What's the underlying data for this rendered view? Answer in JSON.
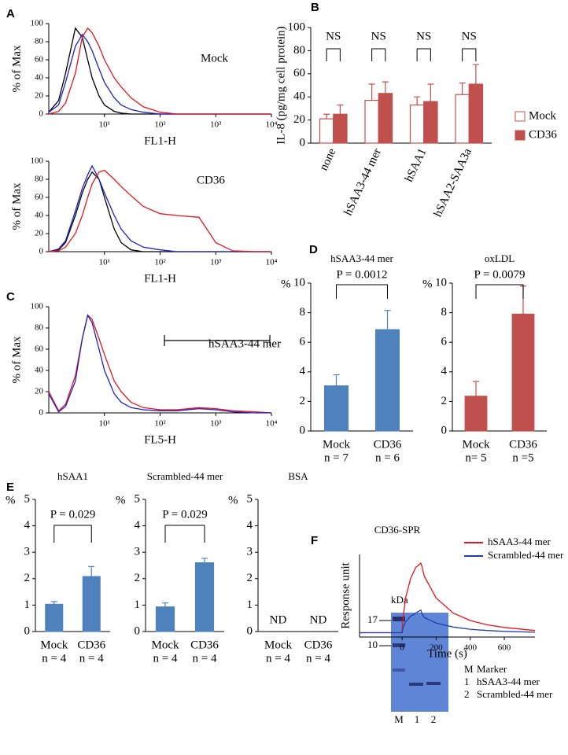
{
  "chart_data": [
    {
      "type": "line",
      "panel": "A",
      "label": "Mock",
      "xlabel": "FL1-H",
      "ylabel": "% of Max",
      "xscale": "log",
      "xlim": [
        1,
        10000
      ],
      "xticks": [
        {
          "value": 10,
          "label": "10¹"
        },
        {
          "value": 100,
          "label": "10²"
        },
        {
          "value": 1000,
          "label": "10³"
        },
        {
          "value": 10000,
          "label": "10⁴"
        }
      ],
      "ylim": [
        0,
        100
      ],
      "yticks": [
        0,
        20,
        40,
        60,
        80,
        100
      ],
      "x": [
        1,
        1.5,
        2,
        3,
        4,
        5,
        6,
        8,
        10,
        15,
        20,
        30,
        50,
        100,
        200,
        500,
        1000,
        2000,
        5000,
        10000
      ],
      "series": [
        {
          "color": "#000000",
          "values": [
            2,
            15,
            45,
            95,
            85,
            60,
            40,
            20,
            10,
            3,
            1,
            0,
            0,
            0,
            0,
            0,
            0,
            0,
            0,
            0
          ]
        },
        {
          "color": "#1f1fc8",
          "values": [
            2,
            10,
            35,
            75,
            88,
            80,
            70,
            50,
            35,
            18,
            10,
            5,
            2,
            0,
            0,
            0,
            0,
            0,
            0,
            0
          ]
        },
        {
          "color": "#e8141c",
          "values": [
            0,
            3,
            12,
            45,
            85,
            95,
            90,
            75,
            60,
            40,
            30,
            18,
            8,
            2,
            0,
            0,
            0,
            0,
            0,
            0
          ]
        }
      ]
    },
    {
      "type": "line",
      "label": "CD36",
      "xlabel": "FL1-H",
      "ylabel": "% of Max",
      "xscale": "log",
      "xlim": [
        1,
        10000
      ],
      "xticks": [
        {
          "value": 10,
          "label": "10¹"
        },
        {
          "value": 100,
          "label": "10²"
        },
        {
          "value": 1000,
          "label": "10³"
        },
        {
          "value": 10000,
          "label": "10⁴"
        }
      ],
      "ylim": [
        0,
        100
      ],
      "yticks": [
        0,
        20,
        40,
        60,
        80,
        100
      ],
      "x": [
        1,
        1.5,
        2,
        3,
        4,
        5,
        6,
        8,
        10,
        15,
        20,
        30,
        50,
        100,
        200,
        500,
        1000,
        2000,
        5000,
        10000
      ],
      "series": [
        {
          "color": "#000000",
          "values": [
            0,
            2,
            10,
            40,
            65,
            80,
            88,
            80,
            60,
            25,
            10,
            2,
            0,
            0,
            0,
            0,
            0,
            0,
            0,
            0
          ]
        },
        {
          "color": "#1f1fc8",
          "values": [
            0,
            3,
            12,
            45,
            70,
            85,
            95,
            80,
            65,
            40,
            25,
            12,
            5,
            2,
            0,
            0,
            0,
            0,
            0,
            0
          ]
        },
        {
          "color": "#e8141c",
          "values": [
            0,
            1,
            5,
            20,
            40,
            60,
            75,
            88,
            90,
            80,
            72,
            62,
            50,
            42,
            40,
            38,
            10,
            1,
            0,
            0
          ]
        }
      ]
    },
    {
      "type": "line",
      "panel": "C",
      "label": "hSAA3-44 mer",
      "xlabel": "FL5-H",
      "ylabel": "% of Max",
      "xscale": "log",
      "xlim": [
        1,
        10000
      ],
      "xticks": [
        {
          "value": 10,
          "label": "10¹"
        },
        {
          "value": 100,
          "label": "10²"
        },
        {
          "value": 1000,
          "label": "10³"
        },
        {
          "value": 10000,
          "label": "10⁴"
        }
      ],
      "ylim": [
        0,
        100
      ],
      "yticks": [
        0,
        20,
        40,
        60,
        80,
        100
      ],
      "x": [
        1,
        1.5,
        2,
        3,
        4,
        5,
        6,
        8,
        10,
        15,
        20,
        30,
        50,
        100,
        200,
        500,
        1000,
        2000,
        5000,
        10000
      ],
      "series": [
        {
          "color": "#e8141c",
          "values": [
            20,
            2,
            8,
            35,
            70,
            92,
            88,
            70,
            55,
            30,
            20,
            10,
            5,
            3,
            3,
            5,
            4,
            2,
            1,
            0
          ]
        },
        {
          "color": "#1f1fc8",
          "values": [
            18,
            1,
            6,
            30,
            70,
            92,
            85,
            60,
            40,
            18,
            10,
            5,
            3,
            2,
            2,
            4,
            3,
            1,
            0,
            0
          ]
        }
      ]
    },
    {
      "type": "bar",
      "panel": "B",
      "ylabel": "IL-8 (pg/mg cell protein)",
      "ylim": [
        0,
        100
      ],
      "yticks": [
        0,
        20,
        40,
        60,
        80,
        100
      ],
      "categories": [
        "none",
        "hSAA3-44 mer",
        "hSAA1",
        "hSAA2-SAA3a"
      ],
      "annotations": [
        "NS",
        "NS",
        "NS",
        "NS"
      ],
      "series": [
        {
          "name": "Mock",
          "color": "#c0504d",
          "fill": "#ffffff",
          "values": [
            21,
            37,
            33,
            42
          ],
          "errors": [
            4,
            14,
            7,
            10
          ]
        },
        {
          "name": "CD36",
          "color": "#c0504d",
          "values": [
            25,
            43,
            36,
            51
          ],
          "errors": [
            8,
            10,
            15,
            17
          ]
        }
      ]
    },
    {
      "type": "bar",
      "panel": "D",
      "title": "hSAA3-44 mer",
      "ylabel": "%",
      "ylim": [
        0,
        10
      ],
      "yticks": [
        0,
        2,
        4,
        6,
        8,
        10
      ],
      "categories": [
        "Mock",
        "CD36"
      ],
      "sublabels": [
        "n = 7",
        "n = 6"
      ],
      "annotation": "P = 0.0012",
      "color": "#4f81bd",
      "values": [
        3.05,
        6.85
      ],
      "errors": [
        0.75,
        1.3
      ]
    },
    {
      "type": "bar",
      "title": "oxLDL",
      "ylabel": "%",
      "ylim": [
        0,
        10
      ],
      "yticks": [
        0,
        2,
        4,
        6,
        8,
        10
      ],
      "categories": [
        "Mock",
        "CD36"
      ],
      "sublabels": [
        "n= 5",
        "n =5"
      ],
      "annotation": "P = 0.0079",
      "color": "#c0504d",
      "values": [
        2.35,
        7.9
      ],
      "errors": [
        1.0,
        1.9
      ]
    },
    {
      "type": "bar",
      "panel": "E",
      "title": "hSAA1",
      "ylabel": "%",
      "ylim": [
        0,
        5
      ],
      "yticks": [
        0,
        1,
        2,
        3,
        4,
        5
      ],
      "categories": [
        "Mock",
        "CD36"
      ],
      "sublabels": [
        "n = 4",
        "n = 4"
      ],
      "annotation": "P = 0.029",
      "color": "#4f81bd",
      "values": [
        1.03,
        2.08
      ],
      "errors": [
        0.1,
        0.38
      ]
    },
    {
      "type": "bar",
      "title": "Scrambled-44 mer",
      "ylabel": "%",
      "ylim": [
        0,
        5
      ],
      "yticks": [
        0,
        1,
        2,
        3,
        4,
        5
      ],
      "categories": [
        "Mock",
        "CD36"
      ],
      "sublabels": [
        "n = 4",
        "n = 4"
      ],
      "annotation": "P = 0.029",
      "color": "#4f81bd",
      "values": [
        0.93,
        2.6
      ],
      "errors": [
        0.15,
        0.17
      ]
    },
    {
      "type": "bar",
      "title": "BSA",
      "ylabel": "%",
      "ylim": [
        0,
        5
      ],
      "yticks": [
        0,
        1,
        2,
        3,
        4,
        5
      ],
      "categories": [
        "Mock",
        "CD36"
      ],
      "sublabels": [
        "n = 4",
        "n = 4"
      ],
      "color": "#4f81bd",
      "values": [
        null,
        null
      ],
      "value_labels": [
        "ND",
        "ND"
      ]
    },
    {
      "type": "line",
      "panel": "F",
      "title": "CD36-SPR",
      "xlabel": "Time (s)",
      "ylabel": "Response unit",
      "xlim": [
        -250,
        780
      ],
      "xticks": [
        0,
        200,
        400,
        600
      ],
      "ylim": [
        -10,
        180
      ],
      "legend": "upper right",
      "x": [
        -250,
        -100,
        0,
        5,
        20,
        50,
        80,
        110,
        115,
        130,
        200,
        300,
        400,
        500,
        600,
        780
      ],
      "series": [
        {
          "name": "hSAA3-44 mer",
          "color": "#e8141c",
          "values": [
            0,
            0,
            0,
            30,
            80,
            125,
            150,
            160,
            155,
            130,
            80,
            45,
            28,
            18,
            12,
            5
          ]
        },
        {
          "name": "Scrambled-44 mer",
          "color": "#1f3fa8",
          "values": [
            0,
            0,
            0,
            10,
            25,
            38,
            45,
            52,
            45,
            35,
            22,
            13,
            8,
            5,
            3,
            1
          ]
        }
      ]
    }
  ],
  "gel": {
    "unit": "kDa",
    "markers": [
      "17",
      "10"
    ],
    "lanes": [
      "M",
      "1",
      "2"
    ],
    "legend": [
      [
        "M",
        "Marker"
      ],
      [
        "1",
        "hSAA3-44 mer"
      ],
      [
        "2",
        "Scrambled-44 mer"
      ]
    ]
  }
}
